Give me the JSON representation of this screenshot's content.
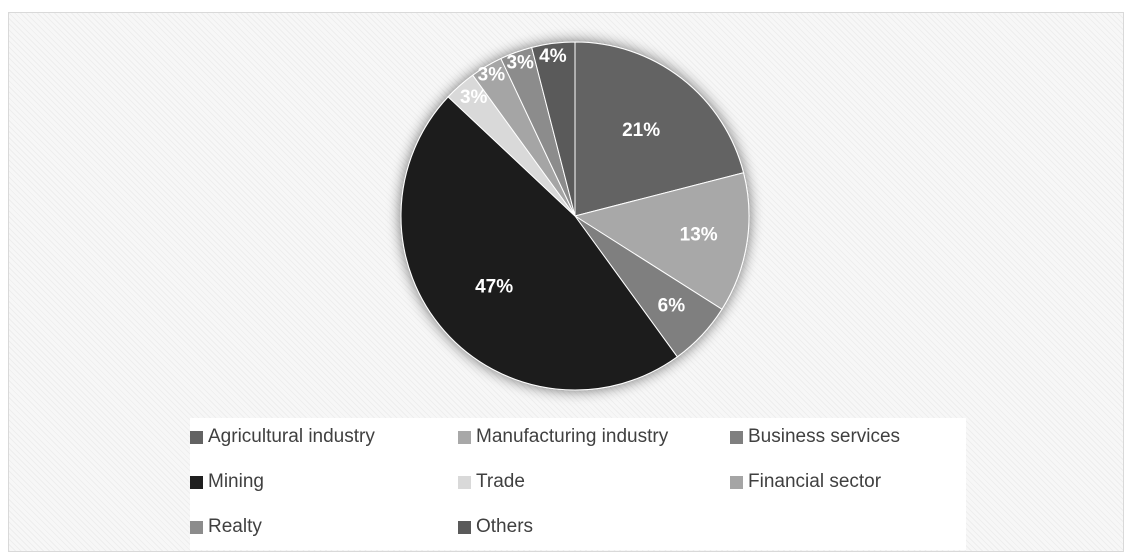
{
  "chart_data": {
    "type": "pie",
    "slices": [
      {
        "name": "Agricultural industry",
        "value": 21,
        "label": "21%",
        "color": "#636363"
      },
      {
        "name": "Manufacturing industry",
        "value": 13,
        "label": "13%",
        "color": "#a8a8a8"
      },
      {
        "name": "Business services",
        "value": 6,
        "label": "6%",
        "color": "#7f7f7f"
      },
      {
        "name": "Mining",
        "value": 47,
        "label": "47%",
        "color": "#1f1f1f"
      },
      {
        "name": "Trade",
        "value": 3,
        "label": "3%",
        "color": "#d9d9d9"
      },
      {
        "name": "Financial sector",
        "value": 3,
        "label": "3%",
        "color": "#a5a5a5"
      },
      {
        "name": "Realty",
        "value": 3,
        "label": "3%",
        "color": "#8c8c8c"
      },
      {
        "name": "Others",
        "value": 4,
        "label": "4%",
        "color": "#5a5a5a"
      }
    ],
    "legend_position": "bottom",
    "title": ""
  }
}
